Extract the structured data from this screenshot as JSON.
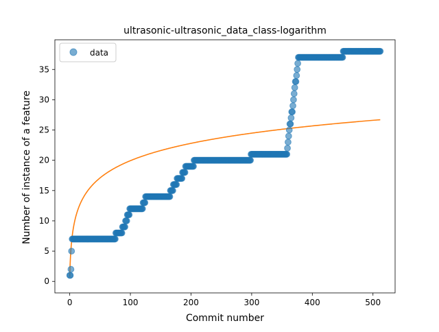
{
  "chart_data": {
    "type": "scatter",
    "title": "ultrasonic-ultrasonic_data_class-logarithm",
    "xlabel": "Commit number",
    "ylabel": "Number of instance of a feature",
    "xlim": [
      -24.5,
      536.5
    ],
    "ylim": [
      -1.9,
      39.9
    ],
    "xticks": [
      0,
      100,
      200,
      300,
      400,
      500
    ],
    "yticks": [
      0,
      5,
      10,
      15,
      20,
      25,
      30,
      35
    ],
    "grid": false,
    "legend": {
      "placement": "top-left",
      "entries": [
        "data"
      ]
    },
    "colors": {
      "data": "#1f77b4",
      "fit": "#ff7f0e"
    },
    "series": [
      {
        "name": "data",
        "kind": "scatter",
        "steps": [
          {
            "x_start": 0,
            "x_end": 1,
            "y": 1
          },
          {
            "x_start": 2,
            "x_end": 2,
            "y": 2
          },
          {
            "x_start": 3,
            "x_end": 3,
            "y": 5
          },
          {
            "x_start": 4,
            "x_end": 75,
            "y": 7
          },
          {
            "x_start": 76,
            "x_end": 86,
            "y": 8
          },
          {
            "x_start": 87,
            "x_end": 91,
            "y": 9
          },
          {
            "x_start": 92,
            "x_end": 94,
            "y": 10
          },
          {
            "x_start": 95,
            "x_end": 98,
            "y": 11
          },
          {
            "x_start": 99,
            "x_end": 120,
            "y": 12
          },
          {
            "x_start": 121,
            "x_end": 124,
            "y": 13
          },
          {
            "x_start": 125,
            "x_end": 165,
            "y": 14
          },
          {
            "x_start": 166,
            "x_end": 170,
            "y": 15
          },
          {
            "x_start": 171,
            "x_end": 176,
            "y": 16
          },
          {
            "x_start": 177,
            "x_end": 185,
            "y": 17
          },
          {
            "x_start": 186,
            "x_end": 190,
            "y": 18
          },
          {
            "x_start": 191,
            "x_end": 204,
            "y": 19
          },
          {
            "x_start": 205,
            "x_end": 298,
            "y": 20
          },
          {
            "x_start": 299,
            "x_end": 358,
            "y": 21
          },
          {
            "x_start": 359,
            "x_end": 359,
            "y": 22
          },
          {
            "x_start": 360,
            "x_end": 360,
            "y": 23
          },
          {
            "x_start": 361,
            "x_end": 361,
            "y": 24
          },
          {
            "x_start": 362,
            "x_end": 362,
            "y": 25
          },
          {
            "x_start": 363,
            "x_end": 364,
            "y": 26
          },
          {
            "x_start": 365,
            "x_end": 365,
            "y": 27
          },
          {
            "x_start": 366,
            "x_end": 367,
            "y": 28
          },
          {
            "x_start": 368,
            "x_end": 368,
            "y": 29
          },
          {
            "x_start": 369,
            "x_end": 369,
            "y": 30
          },
          {
            "x_start": 370,
            "x_end": 370,
            "y": 31
          },
          {
            "x_start": 371,
            "x_end": 371,
            "y": 32
          },
          {
            "x_start": 372,
            "x_end": 373,
            "y": 33
          },
          {
            "x_start": 374,
            "x_end": 374,
            "y": 34
          },
          {
            "x_start": 375,
            "x_end": 375,
            "y": 35
          },
          {
            "x_start": 376,
            "x_end": 376,
            "y": 36
          },
          {
            "x_start": 377,
            "x_end": 450,
            "y": 37
          },
          {
            "x_start": 451,
            "x_end": 512,
            "y": 38
          }
        ]
      },
      {
        "kind": "line",
        "x_range": [
          0,
          512
        ],
        "y_at_x_end": 26.7,
        "y_at_x_200": 22.8,
        "curve": "logarithmic"
      }
    ]
  }
}
